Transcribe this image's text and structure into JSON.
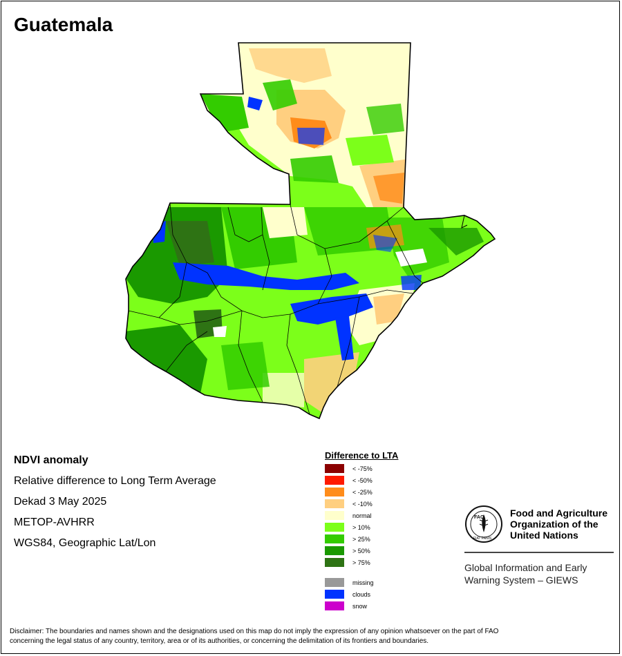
{
  "map": {
    "title": "Guatemala",
    "info": {
      "product": "NDVI anomaly",
      "description": "Relative difference to Long Term Average",
      "period": "Dekad 3 May 2025",
      "sensor": "METOP-AVHRR",
      "projection": "WGS84, Geographic Lat/Lon"
    },
    "legend": {
      "title": "Difference to LTA",
      "classes": [
        {
          "label": "< -75%",
          "color": "#8b0000"
        },
        {
          "label": "< -50%",
          "color": "#ff1a00"
        },
        {
          "label": "< -25%",
          "color": "#ff8c1a"
        },
        {
          "label": "< -10%",
          "color": "#ffcf80"
        },
        {
          "label": "normal",
          "color": "#ffffcc"
        },
        {
          "label": "> 10%",
          "color": "#7cff1a"
        },
        {
          "label": "> 25%",
          "color": "#33cc00"
        },
        {
          "label": "> 50%",
          "color": "#1a9900"
        },
        {
          "label": "> 75%",
          "color": "#2e7314"
        }
      ],
      "special": [
        {
          "label": "missing",
          "color": "#999999"
        },
        {
          "label": "clouds",
          "color": "#0033ff"
        },
        {
          "label": "snow",
          "color": "#cc00cc"
        }
      ]
    },
    "organization": {
      "name_line1": "Food and Agriculture",
      "name_line2": "Organization of the",
      "name_line3": "United Nations",
      "system_line1": "Global Information and Early",
      "system_line2": "Warning System – GIEWS",
      "logo_text": "FAO",
      "logo_motto": "FIAT PANIS"
    },
    "disclaimer_line1": "Disclaimer: The boundaries and names shown and the designations used on this map do not imply the expression of any opinion whatsoever on the part of FAO",
    "disclaimer_line2": "concerning the legal status of any country, territory, area or of its authorities, or concerning the delimitation of its frontiers and boundaries."
  }
}
